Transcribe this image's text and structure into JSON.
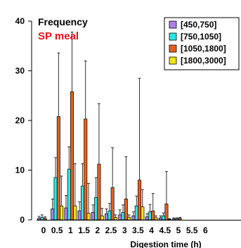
{
  "chart_data": {
    "type": "bar",
    "title": "Frequency",
    "subtitle": "SP meal",
    "xlabel": "Digestion time (h)",
    "ylabel": "",
    "ylim": [
      0,
      40
    ],
    "yticks": [
      0,
      10,
      20,
      30,
      40
    ],
    "categories": [
      "0",
      "0.5",
      "1",
      "1.5",
      "2",
      "2.5",
      "3",
      "3.5",
      "4",
      "4.5",
      "5",
      "5.5",
      "6"
    ],
    "legend_position": "top-right",
    "grid": false,
    "series": [
      {
        "name": "[450,750]",
        "color": "#b07ee8",
        "values": [
          0.3,
          2.2,
          2.4,
          1.8,
          1.5,
          1.2,
          1.0,
          0.8,
          0.6,
          0.4,
          0.2,
          0,
          0
        ],
        "errors": [
          0.4,
          2.0,
          2.5,
          1.8,
          1.5,
          1.0,
          1.0,
          0.8,
          0.6,
          0.4,
          0.2,
          0,
          0
        ]
      },
      {
        "name": "[750,1050]",
        "color": "#2ee6e6",
        "values": [
          0.5,
          8.5,
          10.2,
          6.8,
          4.5,
          1.8,
          1.5,
          2.8,
          1.6,
          0.8,
          0.2,
          0,
          0
        ],
        "errors": [
          0.5,
          4.0,
          4.5,
          4.5,
          4.0,
          1.5,
          1.5,
          2.0,
          1.5,
          0.6,
          0.2,
          0,
          0
        ]
      },
      {
        "name": "[1050,1800]",
        "color": "#e8601c",
        "values": [
          0.3,
          20.8,
          25.8,
          20.3,
          11.2,
          6.5,
          4.2,
          8.0,
          1.8,
          3.2,
          0.3,
          0,
          0
        ],
        "errors": [
          0.3,
          12.8,
          12.0,
          11.7,
          12.2,
          8.0,
          8.5,
          20.5,
          3.5,
          6.5,
          0.2,
          0,
          0
        ]
      },
      {
        "name": "[1800,3000]",
        "color": "#f2e41c",
        "values": [
          0.0,
          2.8,
          2.8,
          1.3,
          0.8,
          0.5,
          0.5,
          2.6,
          0.4,
          0.1,
          0.0,
          0,
          0
        ],
        "errors": [
          0.0,
          6.0,
          8.5,
          6.0,
          1.5,
          0.5,
          0.5,
          3.5,
          0.4,
          0.1,
          0.0,
          0,
          0
        ]
      }
    ]
  }
}
